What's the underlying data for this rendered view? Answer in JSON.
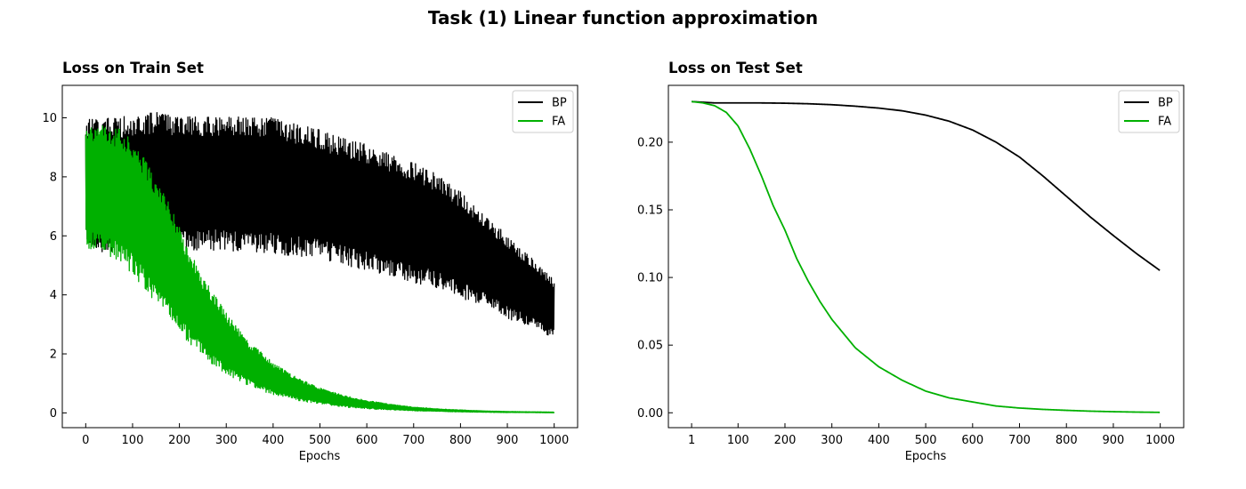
{
  "figure": {
    "title": "Task (1) Linear function approximation"
  },
  "chart_data": [
    {
      "type": "line",
      "title": "Loss on Train Set",
      "xlabel": "Epochs",
      "ylabel": "",
      "xlim": [
        -50,
        1050
      ],
      "ylim": [
        -0.5,
        11.1
      ],
      "xticks": [
        0,
        100,
        200,
        300,
        400,
        500,
        600,
        700,
        800,
        900,
        1000
      ],
      "yticks": [
        0,
        2,
        4,
        6,
        8,
        10
      ],
      "ytick_labels": [
        "0",
        "2",
        "4",
        "6",
        "8",
        "10"
      ],
      "grid": false,
      "legend": "upper right",
      "series": [
        {
          "name": "BP",
          "color": "#000000",
          "style": "oscillating band",
          "x": [
            0,
            50,
            100,
            150,
            200,
            250,
            300,
            350,
            400,
            450,
            500,
            550,
            600,
            650,
            700,
            750,
            800,
            850,
            900,
            950,
            1000
          ],
          "upper": [
            10.0,
            10.0,
            10.1,
            10.2,
            10.1,
            10.1,
            10.1,
            10.0,
            10.0,
            9.8,
            9.6,
            9.3,
            9.1,
            8.8,
            8.5,
            8.1,
            7.5,
            6.8,
            6.0,
            5.3,
            4.5
          ],
          "lower": [
            5.6,
            5.4,
            5.4,
            5.5,
            5.5,
            5.5,
            5.5,
            5.4,
            5.4,
            5.3,
            5.2,
            5.0,
            4.8,
            4.6,
            4.4,
            4.2,
            3.9,
            3.6,
            3.2,
            2.9,
            2.5
          ]
        },
        {
          "name": "FA",
          "color": "#00b000",
          "style": "oscillating band",
          "x": [
            0,
            25,
            50,
            75,
            100,
            125,
            150,
            175,
            200,
            225,
            250,
            300,
            350,
            400,
            450,
            500,
            550,
            600,
            650,
            700,
            750,
            800,
            850,
            900,
            950,
            1000
          ],
          "upper": [
            10.0,
            9.8,
            9.8,
            9.6,
            9.2,
            8.7,
            8.0,
            7.2,
            6.3,
            5.4,
            4.6,
            3.4,
            2.4,
            1.7,
            1.2,
            0.85,
            0.6,
            0.42,
            0.3,
            0.2,
            0.14,
            0.1,
            0.07,
            0.05,
            0.04,
            0.03
          ],
          "lower": [
            5.6,
            5.5,
            5.3,
            5.0,
            4.7,
            4.2,
            3.7,
            3.2,
            2.7,
            2.3,
            1.9,
            1.3,
            0.9,
            0.6,
            0.42,
            0.3,
            0.2,
            0.14,
            0.1,
            0.07,
            0.05,
            0.03,
            0.02,
            0.01,
            0.01,
            0.0
          ]
        }
      ]
    },
    {
      "type": "line",
      "title": "Loss on Test Set",
      "xlabel": "Epochs",
      "ylabel": "",
      "xlim": [
        -48.5,
        1050
      ],
      "ylim": [
        -0.011,
        0.242
      ],
      "xticks": [
        1,
        100,
        200,
        300,
        400,
        500,
        600,
        700,
        800,
        900,
        1000
      ],
      "yticks": [
        0.0,
        0.05,
        0.1,
        0.15,
        0.2
      ],
      "ytick_labels": [
        "0.00",
        "0.05",
        "0.10",
        "0.15",
        "0.20"
      ],
      "grid": false,
      "legend": "upper right",
      "series": [
        {
          "name": "BP",
          "color": "#000000",
          "x": [
            1,
            50,
            100,
            150,
            200,
            250,
            300,
            350,
            400,
            450,
            500,
            550,
            600,
            650,
            700,
            750,
            800,
            850,
            900,
            950,
            1000
          ],
          "y": [
            0.23,
            0.229,
            0.229,
            0.229,
            0.2288,
            0.2284,
            0.2277,
            0.2266,
            0.2252,
            0.2232,
            0.22,
            0.2155,
            0.209,
            0.2,
            0.189,
            0.175,
            0.16,
            0.145,
            0.131,
            0.1175,
            0.105
          ]
        },
        {
          "name": "FA",
          "color": "#00b000",
          "x": [
            1,
            25,
            50,
            75,
            100,
            125,
            150,
            175,
            200,
            225,
            250,
            275,
            300,
            350,
            400,
            450,
            500,
            550,
            600,
            650,
            700,
            750,
            800,
            850,
            900,
            950,
            1000
          ],
          "y": [
            0.23,
            0.229,
            0.227,
            0.222,
            0.212,
            0.195,
            0.175,
            0.153,
            0.135,
            0.114,
            0.097,
            0.082,
            0.069,
            0.048,
            0.034,
            0.024,
            0.016,
            0.011,
            0.008,
            0.005,
            0.0035,
            0.0025,
            0.0018,
            0.0012,
            0.0008,
            0.0005,
            0.0003
          ]
        }
      ]
    }
  ]
}
